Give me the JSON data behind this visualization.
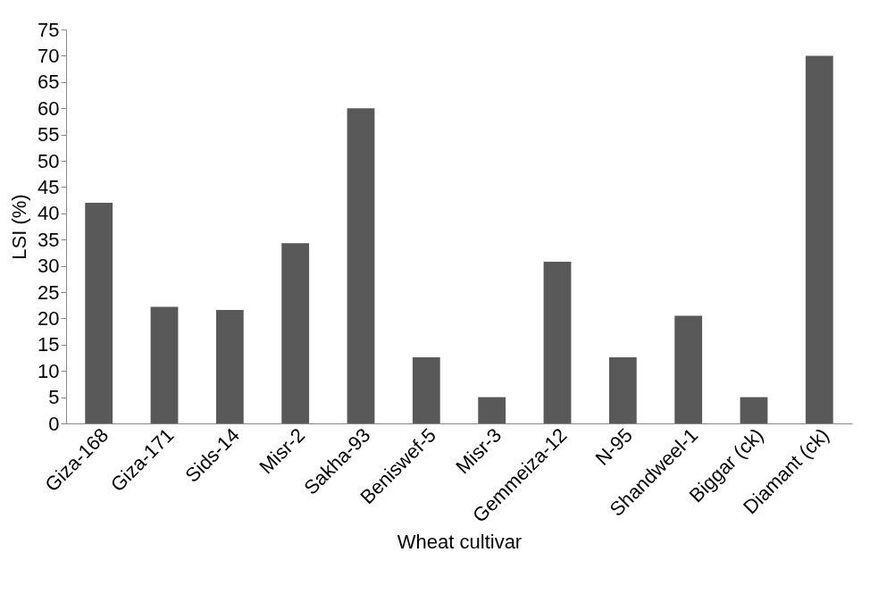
{
  "chart_data": {
    "type": "bar",
    "xlabel": "Wheat cultivar",
    "ylabel": "LSI (%)",
    "categories": [
      "Giza-168",
      "Giza-171",
      "Sids-14",
      "Misr-2",
      "Sakha-93",
      "Beniswef-5",
      "Misr-3",
      "Gemmeiza-12",
      "N-95",
      "Shandweel-1",
      "Biggar (ck)",
      "Diamant (ck)"
    ],
    "values": [
      42,
      22.2,
      21.6,
      34.3,
      60,
      12.6,
      5,
      30.8,
      12.6,
      20.5,
      5,
      70
    ],
    "color": "#595959",
    "ylim": [
      0,
      75
    ],
    "yticks": [
      0,
      5,
      10,
      15,
      20,
      25,
      30,
      35,
      40,
      45,
      50,
      55,
      60,
      65,
      70,
      75
    ],
    "grid": false
  }
}
